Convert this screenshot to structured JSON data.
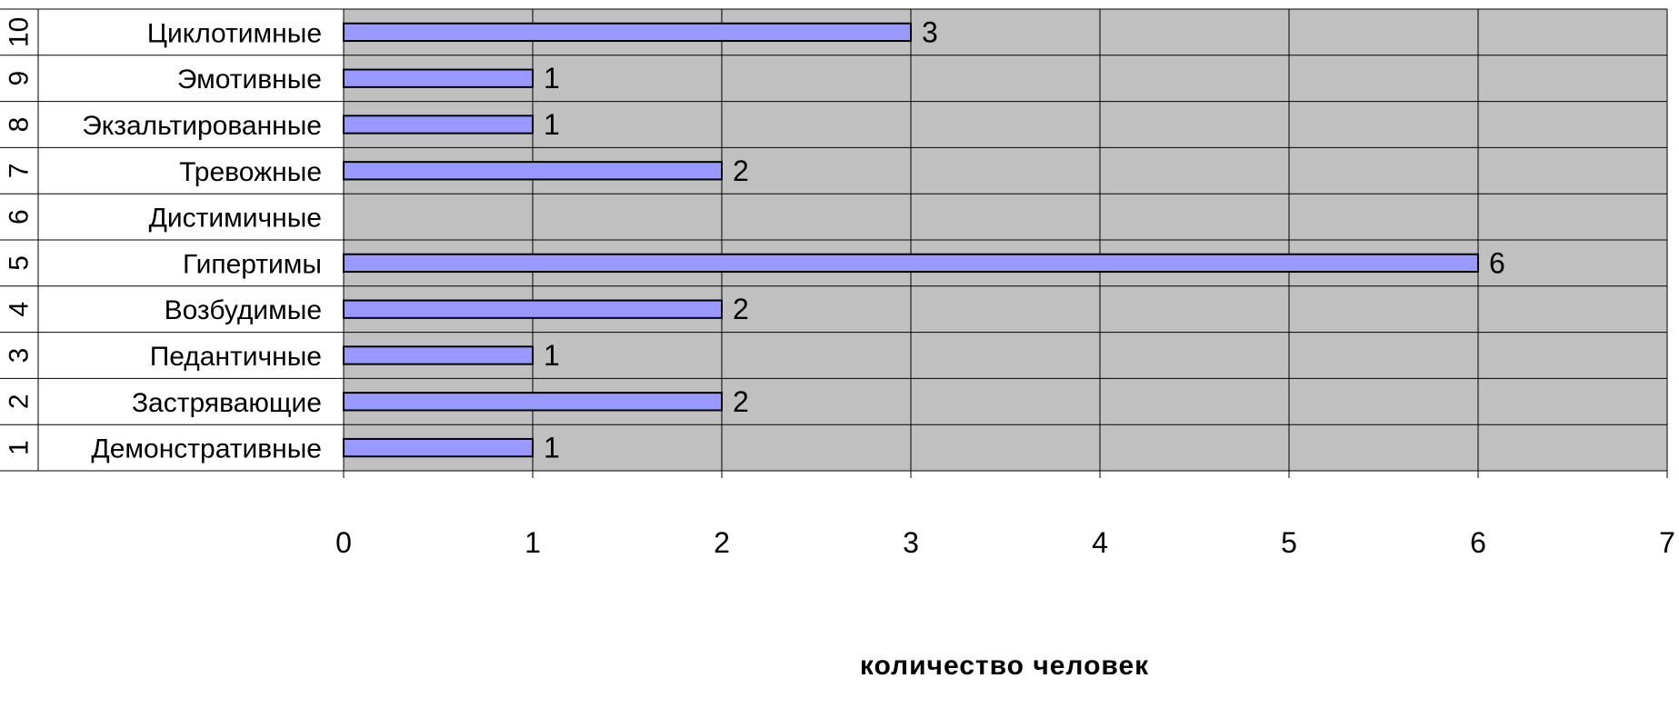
{
  "chart_data": {
    "type": "bar",
    "orientation": "horizontal",
    "categories": [
      {
        "num": "1",
        "label": "Демонстративные"
      },
      {
        "num": "2",
        "label": "Застрявающие"
      },
      {
        "num": "3",
        "label": "Педантичные"
      },
      {
        "num": "4",
        "label": "Возбудимые"
      },
      {
        "num": "5",
        "label": "Гипертимы"
      },
      {
        "num": "6",
        "label": "Дистимичные"
      },
      {
        "num": "7",
        "label": "Тревожные"
      },
      {
        "num": "8",
        "label": "Экзальтированные"
      },
      {
        "num": "9",
        "label": "Эмотивные"
      },
      {
        "num": "10",
        "label": "Циклотимные"
      }
    ],
    "values": [
      1,
      2,
      1,
      2,
      6,
      null,
      2,
      1,
      1,
      3
    ],
    "data_labels": [
      "1",
      "2",
      "1",
      "2",
      "6",
      "",
      "2",
      "1",
      "1",
      "3"
    ],
    "x_ticks": [
      "0",
      "1",
      "2",
      "3",
      "4",
      "5",
      "6",
      "7"
    ],
    "xlim": [
      0,
      7
    ],
    "xlabel": "количество человек",
    "grid": true,
    "colors": {
      "bar_fill": "#9999ff",
      "bar_stroke": "#000000",
      "plot_background": "#c0c0c0",
      "gridline": "#000000",
      "table_line": "#000000"
    }
  }
}
